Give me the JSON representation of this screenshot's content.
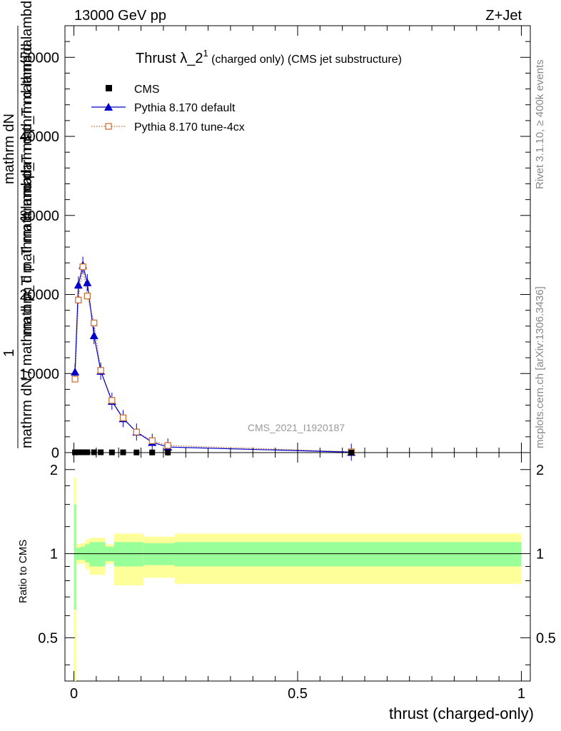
{
  "header": {
    "left": "13000 GeV pp",
    "right": "Z+Jet"
  },
  "title": {
    "main": "Thrust λ_2",
    "sup": "1",
    "sub": " (charged only) (CMS jet substructure)"
  },
  "side_text": {
    "rivet": "Rivet 3.1.10, ≥ 400k events",
    "mcplots": "mcplots.cern.ch [arXiv:1306.3436]"
  },
  "watermark": "CMS_2021_I1920187",
  "ylabel_main": {
    "numerator": "1",
    "denominator": "mathrm dN / mathrm d p_T mathrm d p_T mathrm d lambda",
    "frac_top": "mathrm d²N",
    "frac_bottom": "mathrm d p_T mathrm d lambda"
  },
  "ylabel_main_lines": [
    "mathrm dN",
    "mathrm d p_T mathrm d lambda",
    "mathrm d p_T mathrm d p_T mathrm d lambda",
    "mathrm dN / mathrm d p_T mathrm d lambda"
  ],
  "ylabel_ratio": "Ratio to CMS",
  "xlabel": "thrust (charged-only)",
  "colors": {
    "pythia_default": "#0000cc",
    "pythia_tune": "#cc6622",
    "band_inner": "#99ff99",
    "band_outer": "#ffff99",
    "data": "#000000"
  },
  "chart_data": [
    {
      "type": "scatter",
      "panel": "main",
      "xlim": [
        -0.02,
        1.02
      ],
      "ylim": [
        0,
        54000
      ],
      "y_ticks": [
        0,
        10000,
        20000,
        30000,
        40000,
        50000
      ],
      "y_tick_labels": [
        "0",
        "10000",
        "20000",
        "30000",
        "40000",
        "50000"
      ],
      "legend_position": "top-left",
      "series": [
        {
          "name": "CMS",
          "marker": "square",
          "x": [
            0.0025,
            0.01,
            0.02,
            0.03,
            0.045,
            0.06,
            0.085,
            0.11,
            0.14,
            0.175,
            0.21,
            0.62
          ],
          "y": [
            30,
            40,
            40,
            40,
            40,
            40,
            30,
            30,
            20,
            20,
            15,
            5
          ]
        },
        {
          "name": "Pythia 8.170 default",
          "marker": "triangle",
          "x": [
            0.0025,
            0.01,
            0.02,
            0.03,
            0.045,
            0.06,
            0.085,
            0.11,
            0.14,
            0.175,
            0.21,
            0.62
          ],
          "y": [
            10200,
            21200,
            23700,
            21500,
            14800,
            10300,
            6500,
            4300,
            2600,
            1300,
            700,
            50
          ]
        },
        {
          "name": "Pythia 8.170 tune-4cx",
          "marker": "open-square",
          "x": [
            0.0025,
            0.01,
            0.02,
            0.03,
            0.045,
            0.06,
            0.085,
            0.11,
            0.14,
            0.175,
            0.21,
            0.62
          ],
          "y": [
            9300,
            19300,
            23500,
            19800,
            16400,
            10400,
            6600,
            4400,
            2600,
            1500,
            900,
            100
          ]
        }
      ]
    },
    {
      "type": "area",
      "panel": "ratio",
      "xlim": [
        -0.02,
        1.02
      ],
      "ylim": [
        0.35,
        2.3
      ],
      "y_ticks": [
        0.5,
        1,
        2
      ],
      "y_tick_labels": [
        "0.5",
        "1",
        "2"
      ],
      "x_ticks": [
        0,
        0.5,
        1
      ],
      "x_tick_labels": [
        "0",
        "0.5",
        "1"
      ],
      "reference_line": 1,
      "bins": [
        {
          "lo": 0.0,
          "hi": 0.005,
          "inner": [
            0.63,
            1.5
          ],
          "outer": [
            0.35,
            1.87
          ]
        },
        {
          "lo": 0.005,
          "hi": 0.015,
          "inner": [
            0.95,
            1.05
          ],
          "outer": [
            0.92,
            1.08
          ]
        },
        {
          "lo": 0.015,
          "hi": 0.025,
          "inner": [
            0.95,
            1.06
          ],
          "outer": [
            0.92,
            1.09
          ]
        },
        {
          "lo": 0.025,
          "hi": 0.035,
          "inner": [
            0.93,
            1.08
          ],
          "outer": [
            0.88,
            1.12
          ]
        },
        {
          "lo": 0.035,
          "hi": 0.07,
          "inner": [
            0.9,
            1.1
          ],
          "outer": [
            0.84,
            1.14
          ]
        },
        {
          "lo": 0.07,
          "hi": 0.09,
          "inner": [
            0.94,
            1.06
          ],
          "outer": [
            0.92,
            1.08
          ]
        },
        {
          "lo": 0.09,
          "hi": 0.155,
          "inner": [
            0.9,
            1.1
          ],
          "outer": [
            0.77,
            1.18
          ]
        },
        {
          "lo": 0.155,
          "hi": 0.225,
          "inner": [
            0.91,
            1.09
          ],
          "outer": [
            0.82,
            1.15
          ]
        },
        {
          "lo": 0.225,
          "hi": 1.0,
          "inner": [
            0.9,
            1.1
          ],
          "outer": [
            0.78,
            1.18
          ]
        }
      ]
    }
  ]
}
